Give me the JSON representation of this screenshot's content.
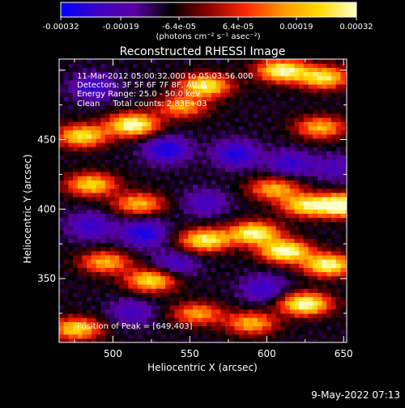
{
  "colorbar": {
    "tick_labels": [
      "-0.00032",
      "-0.00019",
      "-6.4e-05",
      "6.4e-05",
      "0.00019",
      "0.00032"
    ],
    "tick_values": [
      -0.00032,
      -0.00019,
      -6.4e-05,
      6.4e-05,
      0.00019,
      0.00032
    ],
    "range": [
      -0.00032,
      0.00032
    ],
    "units_text": "(photons cm⁻² s⁻¹ asec⁻²)",
    "colormap": [
      "#0000ff",
      "#3c00c8",
      "#5a00a0",
      "#000000",
      "#8c0000",
      "#ff2800",
      "#ff9600",
      "#ffdc00",
      "#ffffc8"
    ]
  },
  "chart_data": {
    "type": "heatmap",
    "title": "Reconstructed RHESSI Image",
    "xlabel": "Heliocentric X (arcsec)",
    "ylabel": "Heliocentric Y (arcsec)",
    "xlim": [
      465,
      652
    ],
    "ylim": [
      304,
      508
    ],
    "x_ticks": [
      500,
      550,
      600,
      650
    ],
    "y_ticks": [
      350,
      400,
      450
    ],
    "annotations": [
      "11-Mar-2012 05:00:32.000 to 05:03:56.000",
      "Detectors: 3F 5F 6F 7F 8F, Att 0",
      "Energy Range: 25.0 - 50.0 keV",
      "Clean     Total counts: 2.83E+03"
    ],
    "peak_text": "Position of Peak = [649,403]",
    "peak": [
      649,
      403
    ],
    "timestamp": "9-May-2022 07:13",
    "hot_regions": [
      {
        "x": 480,
        "y": 453,
        "level": 0.75
      },
      {
        "x": 513,
        "y": 461,
        "level": 0.9
      },
      {
        "x": 545,
        "y": 474,
        "level": 0.55
      },
      {
        "x": 560,
        "y": 489,
        "level": 0.8
      },
      {
        "x": 610,
        "y": 500,
        "level": 0.85
      },
      {
        "x": 637,
        "y": 495,
        "level": 0.75
      },
      {
        "x": 635,
        "y": 459,
        "level": 0.6
      },
      {
        "x": 486,
        "y": 418,
        "level": 0.7
      },
      {
        "x": 517,
        "y": 404,
        "level": 0.6
      },
      {
        "x": 495,
        "y": 362,
        "level": 0.6
      },
      {
        "x": 525,
        "y": 349,
        "level": 0.75
      },
      {
        "x": 560,
        "y": 378,
        "level": 0.8
      },
      {
        "x": 592,
        "y": 383,
        "level": 0.85
      },
      {
        "x": 605,
        "y": 415,
        "level": 0.6
      },
      {
        "x": 625,
        "y": 403,
        "level": 0.7
      },
      {
        "x": 649,
        "y": 403,
        "level": 1.0
      },
      {
        "x": 612,
        "y": 370,
        "level": 0.9
      },
      {
        "x": 640,
        "y": 360,
        "level": 0.85
      },
      {
        "x": 625,
        "y": 332,
        "level": 0.9
      },
      {
        "x": 590,
        "y": 318,
        "level": 0.6
      },
      {
        "x": 476,
        "y": 314,
        "level": 0.7
      },
      {
        "x": 555,
        "y": 325,
        "level": 0.55
      }
    ],
    "cold_regions": [
      {
        "x": 487,
        "y": 488,
        "level": 0.7
      },
      {
        "x": 535,
        "y": 443,
        "level": 0.9
      },
      {
        "x": 580,
        "y": 440,
        "level": 0.85
      },
      {
        "x": 615,
        "y": 433,
        "level": 0.7
      },
      {
        "x": 520,
        "y": 383,
        "level": 0.9
      },
      {
        "x": 485,
        "y": 388,
        "level": 0.7
      },
      {
        "x": 560,
        "y": 405,
        "level": 0.6
      },
      {
        "x": 598,
        "y": 343,
        "level": 0.7
      },
      {
        "x": 540,
        "y": 360,
        "level": 0.65
      },
      {
        "x": 512,
        "y": 326,
        "level": 0.6
      },
      {
        "x": 645,
        "y": 430,
        "level": 0.5
      }
    ]
  }
}
